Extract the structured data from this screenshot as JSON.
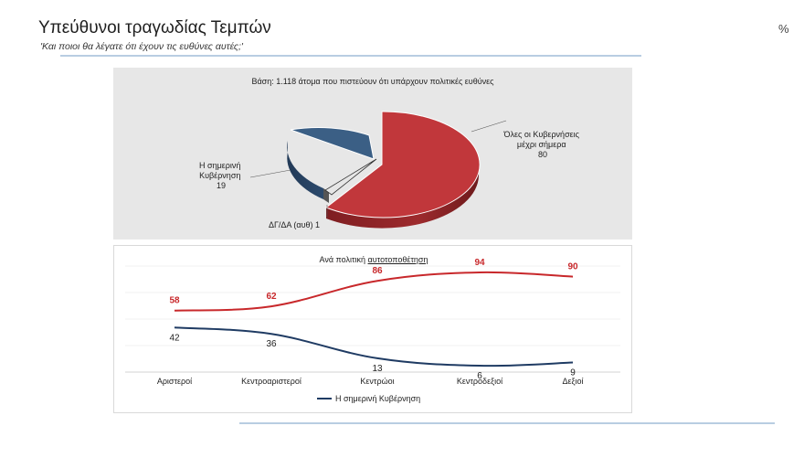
{
  "header": {
    "title": "Υπεύθυνοι τραγωδίας Τεμπών",
    "subtitle": "'Και ποιοι θα λέγατε ότι έχουν τις ευθύνες αυτές;'",
    "unit": "%"
  },
  "chart_data": [
    {
      "type": "pie",
      "title": "Βάση: 1.118 άτομα που πιστεύουν ότι υπάρχουν πολιτικές ευθύνες",
      "slices": [
        {
          "label": "Όλες οι Κυβερνήσεις μέχρι σήμερα",
          "value": 80,
          "color": "#c1373b"
        },
        {
          "label": "Η σημερινή Κυβέρνηση",
          "value": 19,
          "color": "#3b5f85"
        },
        {
          "label": "ΔΓ/ΔΑ (αυθ)",
          "value": 1,
          "color": "#d9d9d9"
        }
      ]
    },
    {
      "type": "line",
      "title_prefix": "Ανά πολιτική ",
      "title_underlined": "αυτοτοποθέτηση",
      "categories": [
        "Αριστεροί",
        "Κεντροαριστεροί",
        "Κεντρώοι",
        "Κεντροδεξιοί",
        "Δεξιοί"
      ],
      "series": [
        {
          "name": "",
          "values": [
            58,
            62,
            86,
            94,
            90
          ],
          "color": "#c8282b"
        },
        {
          "name": "Η σημερινή Κυβέρνηση",
          "values": [
            42,
            36,
            13,
            6,
            9
          ],
          "color": "#1f3b63"
        }
      ],
      "ylim": [
        0,
        100
      ]
    }
  ]
}
